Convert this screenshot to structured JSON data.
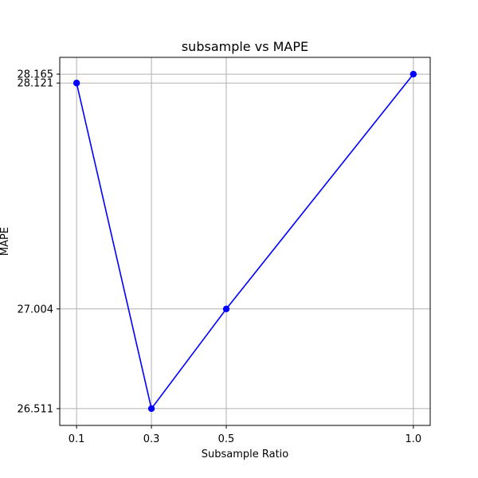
{
  "chart_data": {
    "type": "line",
    "title": "subsample vs MAPE",
    "xlabel": "Subsample Ratio",
    "ylabel": "MAPE",
    "x": [
      0.1,
      0.3,
      0.5,
      1.0
    ],
    "x_ticks": [
      "0.1",
      "0.3",
      "0.5",
      "1.0"
    ],
    "y_ticks": [
      "26.511",
      "27.004",
      "28.121",
      "28.165"
    ],
    "series": [
      {
        "values": [
          28.121,
          26.511,
          27.004,
          28.165
        ],
        "color": "#0000ff",
        "marker": "circle"
      }
    ],
    "xlim": [
      0.055,
      1.045
    ],
    "ylim": [
      26.428,
      28.248
    ],
    "grid": true,
    "legend": "none"
  }
}
